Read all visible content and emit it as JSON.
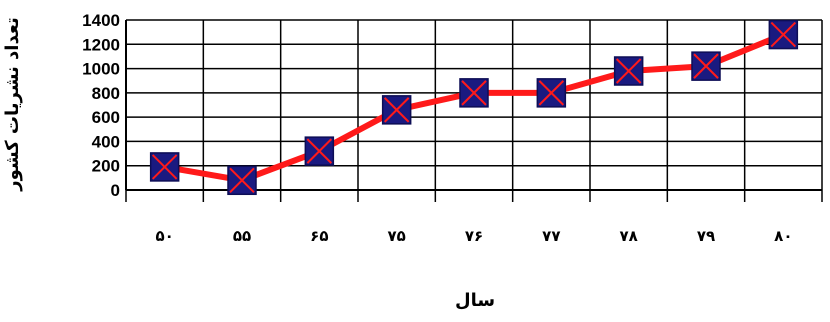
{
  "chart_data": {
    "type": "line",
    "xlabel": "سال",
    "ylabel": "تعداد نشریات کشور",
    "categories": [
      "۵۰",
      "۵۵",
      "۶۵",
      "۷۵",
      "۷۶",
      "۷۷",
      "۷۸",
      "۷۹",
      "۸۰"
    ],
    "yticks": [
      "1400",
      "1200",
      "1000",
      "800",
      "600",
      "400",
      "200",
      "0"
    ],
    "ylim": [
      0,
      1400
    ],
    "grid": true,
    "series": [
      {
        "values": [
          190,
          80,
          320,
          660,
          800,
          800,
          980,
          1020,
          1280
        ]
      }
    ],
    "colors": {
      "line": "#ff1a1a",
      "marker_fill": "#1a1a80",
      "marker_cross": "#ff1a1a",
      "grid": "#000000"
    },
    "marker": "x-square"
  }
}
